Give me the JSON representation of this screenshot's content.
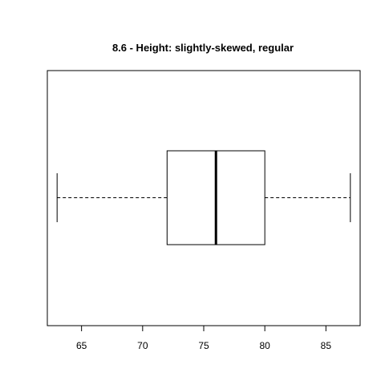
{
  "chart_data": {
    "type": "boxplot",
    "orientation": "horizontal",
    "title": "8.6 - Height: slightly-skewed, regular",
    "xlabel": "",
    "ylabel": "",
    "xlim": [
      62.2,
      87.8
    ],
    "xticks": [
      65,
      70,
      75,
      80,
      85
    ],
    "xtick_labels": [
      "65",
      "70",
      "75",
      "80",
      "85"
    ],
    "grid": false,
    "stats": {
      "min": 63,
      "q1": 72,
      "median": 76,
      "q3": 80,
      "max": 87
    }
  }
}
